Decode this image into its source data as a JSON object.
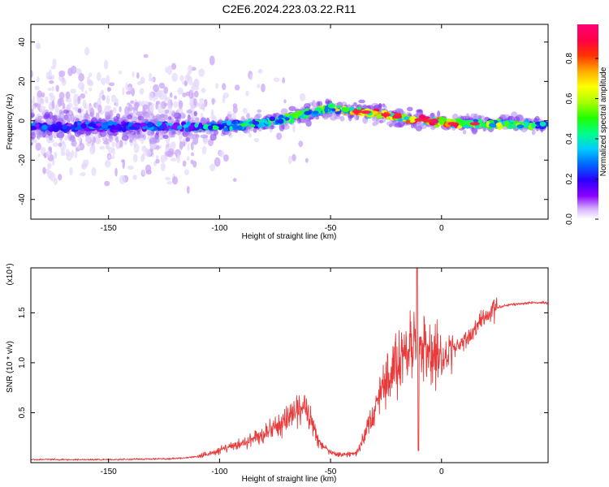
{
  "title": "C2E6.2024.223.03.22.R11",
  "colors": {
    "snr_line": "#e83a3a",
    "trace_core": "#4a0de0",
    "trace_halo": "#b08cf2",
    "trace_faint": "#d7c6f8"
  },
  "chart_data": [
    {
      "type": "heatmap",
      "title": "C2E6.2024.223.03.22.R11",
      "xlabel": "Height of straight line (km)",
      "ylabel": "Frequency (Hz)",
      "xlim": [
        -185,
        48
      ],
      "ylim": [
        -50,
        49
      ],
      "x_ticks": [
        -150,
        -100,
        -50,
        0
      ],
      "x_tick_labels": [
        "-150",
        "-100",
        "-50",
        "0"
      ],
      "y_ticks": [
        -40,
        -20,
        0,
        20,
        40
      ],
      "y_tick_labels": [
        "-40",
        "-20",
        "0",
        "20",
        "40"
      ],
      "colorbar": {
        "label": "Normalized spectral amplitude",
        "range": [
          0,
          0.97
        ],
        "ticks": [
          0.0,
          0.2,
          0.4,
          0.6,
          0.8
        ],
        "tick_labels": [
          "0.0",
          "0.2",
          "0.4",
          "0.6",
          "0.8"
        ],
        "colormap": [
          "#ffffff",
          "#d8b8ff",
          "#8a00ff",
          "#2a00ff",
          "#0066ff",
          "#00ccff",
          "#00ff88",
          "#22ff00",
          "#aaff00",
          "#ffff00",
          "#ffaa00",
          "#ff3300",
          "#ff0044",
          "#ff0077"
        ]
      },
      "ridge": {
        "x": [
          -185,
          -170,
          -155,
          -140,
          -125,
          -110,
          -100,
          -90,
          -80,
          -70,
          -60,
          -50,
          -42,
          -35,
          -25,
          -15,
          -5,
          5,
          15,
          25,
          35,
          48
        ],
        "y": [
          -3,
          -3,
          -3,
          -3,
          -3,
          -3,
          -3,
          -2,
          -1,
          1,
          4,
          6,
          5,
          4.5,
          3,
          1,
          0,
          -1.5,
          -1.5,
          -1.5,
          -2,
          -2
        ],
        "amplitude": [
          0.3,
          0.3,
          0.32,
          0.3,
          0.35,
          0.4,
          0.45,
          0.5,
          0.5,
          0.55,
          0.55,
          0.55,
          0.8,
          0.85,
          0.9,
          0.9,
          0.9,
          0.9,
          0.6,
          0.6,
          0.55,
          0.5
        ]
      }
    },
    {
      "type": "line",
      "xlabel": "Height of straight line (km)",
      "ylabel": "SNR (10 * v/v)",
      "y_multiplier": "(x10⁴)",
      "xlim": [
        -185,
        48
      ],
      "ylim": [
        0,
        1.95
      ],
      "x_ticks": [
        -150,
        -100,
        -50,
        0
      ],
      "x_tick_labels": [
        "-150",
        "-100",
        "-50",
        "0"
      ],
      "y_ticks": [
        0.5,
        1.0,
        1.5
      ],
      "y_tick_labels": [
        "0.5",
        "1.0",
        "1.5"
      ],
      "envelope": {
        "x": [
          -185,
          -150,
          -120,
          -110,
          -100,
          -90,
          -80,
          -70,
          -65,
          -60,
          -55,
          -50,
          -45,
          -38,
          -35,
          -30,
          -25,
          -20,
          -15,
          -11,
          -5,
          0,
          5,
          10,
          15,
          20,
          25,
          30,
          40,
          48
        ],
        "y": [
          0.03,
          0.03,
          0.04,
          0.06,
          0.12,
          0.2,
          0.28,
          0.45,
          0.55,
          0.5,
          0.2,
          0.1,
          0.08,
          0.1,
          0.25,
          0.55,
          0.8,
          1.0,
          1.1,
          1.15,
          1.1,
          1.05,
          1.15,
          1.2,
          1.35,
          1.45,
          1.55,
          1.58,
          1.6,
          1.6
        ]
      },
      "spike": {
        "x": -11,
        "y": 1.95
      }
    }
  ]
}
